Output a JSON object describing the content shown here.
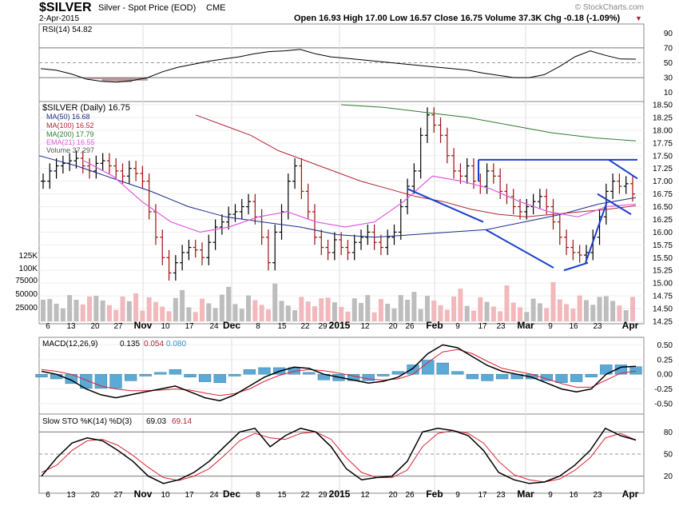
{
  "header": {
    "symbol": "$SILVER",
    "description": "Silver - Spot Price (EOD)",
    "exchange": "CME",
    "date": "2-Apr-2015",
    "copyright": "© StockCharts.com",
    "ohlc_text": "Open 16.93  High 17.00  Low 16.57  Close 16.75  Volume 37.3K  Chg -0.18 (-1.09%)",
    "chg_marker": "▼"
  },
  "colors": {
    "ma50": "#1c2a87",
    "ma100": "#b22234",
    "ma200": "#2e7d2e",
    "ema21": "#e05ae0",
    "trend": "#1a3fcf",
    "up_vol": "#bdbdbd",
    "down_vol": "#f2b8bc",
    "macd_hist": "#5aa9d6",
    "down_bar": "#a01010"
  },
  "chart_data": [
    {
      "type": "line",
      "panel": "rsi",
      "title": "RSI(14) 54.82",
      "yticks": [
        10,
        30,
        50,
        70,
        90
      ],
      "ylim": [
        0,
        100
      ],
      "overbought": 70,
      "oversold": 30,
      "values": [
        42,
        40,
        35,
        28,
        25,
        24,
        26,
        30,
        38,
        44,
        48,
        52,
        55,
        58,
        62,
        65,
        66,
        68,
        62,
        58,
        56,
        54,
        52,
        50,
        48,
        46,
        44,
        42,
        40,
        36,
        33,
        30,
        30,
        34,
        45,
        58,
        66,
        60,
        55,
        54.82
      ]
    },
    {
      "type": "ohlc",
      "panel": "price",
      "title": "$SILVER (Daily) 16.75",
      "legend": [
        "MA(50) 16.68",
        "MA(100) 16.52",
        "MA(200) 17.79",
        "EMA(21) 16.55",
        "Volume 37,297"
      ],
      "ylim": [
        14.25,
        18.5
      ],
      "yticks": [
        14.25,
        14.5,
        14.75,
        15.0,
        15.25,
        15.5,
        15.75,
        16.0,
        16.25,
        16.5,
        16.75,
        17.0,
        17.25,
        17.5,
        17.75,
        18.0,
        18.25,
        18.5
      ],
      "ytick_labels": [
        "14.25",
        "14.50",
        "14.75",
        "15.00",
        "15.25",
        "15.50",
        "15.75",
        "16.00",
        "16.25",
        "16.50",
        "16.75",
        "17.00",
        "17.25",
        "17.50",
        "17.75",
        "18.00",
        "18.25",
        "18.50"
      ],
      "volume_ticks": [
        "25000",
        "50000",
        "75000",
        "100K",
        "125K"
      ],
      "close": [
        17.0,
        17.2,
        17.3,
        17.35,
        17.4,
        17.45,
        17.3,
        17.2,
        17.35,
        17.4,
        17.3,
        17.2,
        17.1,
        17.25,
        17.15,
        17.0,
        16.4,
        15.9,
        15.5,
        15.2,
        15.4,
        15.6,
        15.7,
        15.65,
        15.5,
        15.8,
        16.1,
        16.2,
        16.35,
        16.4,
        16.5,
        16.6,
        16.3,
        15.9,
        15.4,
        16.0,
        16.4,
        17.0,
        17.3,
        16.8,
        16.4,
        15.9,
        15.7,
        15.6,
        15.85,
        15.7,
        15.6,
        15.8,
        15.9,
        16.0,
        15.8,
        15.7,
        15.9,
        16.0,
        16.5,
        16.9,
        17.2,
        17.9,
        18.3,
        18.1,
        17.9,
        17.5,
        17.2,
        17.1,
        17.3,
        17.0,
        16.9,
        17.2,
        17.1,
        16.8,
        16.7,
        16.5,
        16.4,
        16.5,
        16.6,
        16.7,
        16.5,
        16.2,
        15.9,
        15.7,
        15.6,
        15.55,
        15.6,
        15.9,
        16.3,
        16.8,
        17.0,
        16.9,
        16.95,
        16.75
      ],
      "ma50": [
        17.5,
        17.3,
        17.05,
        16.8,
        16.5,
        16.3,
        16.2,
        16.1,
        15.95,
        15.9,
        15.95,
        16.0,
        16.05,
        16.2,
        16.35,
        16.55,
        16.68
      ],
      "ma100": [
        18.3,
        18.1,
        17.9,
        17.6,
        17.4,
        17.2,
        17.0,
        16.85,
        16.7,
        16.6,
        16.45,
        16.35,
        16.3,
        16.35,
        16.4,
        16.45,
        16.52
      ],
      "ma200": [
        18.5,
        18.45,
        18.35,
        18.25,
        18.1,
        17.95,
        17.85,
        17.79
      ],
      "ema21": [
        17.4,
        17.1,
        16.6,
        16.2,
        16.0,
        16.1,
        16.3,
        16.4,
        16.2,
        16.1,
        16.2,
        16.6,
        17.1,
        17.0,
        16.85,
        16.6,
        16.4,
        16.3,
        16.5,
        16.55
      ]
    },
    {
      "type": "line",
      "panel": "macd",
      "title": "MACD(12,26,9)",
      "values_label": [
        "0.135",
        "0.054",
        "0.080"
      ],
      "ylim": [
        -0.65,
        0.6
      ],
      "yticks": [
        -0.5,
        -0.25,
        0.0,
        0.25,
        0.5
      ],
      "ytick_labels": [
        "-0.50",
        "-0.25",
        "0.00",
        "0.25",
        "0.50"
      ],
      "macd": [
        0.05,
        0.0,
        -0.1,
        -0.25,
        -0.35,
        -0.4,
        -0.35,
        -0.3,
        -0.25,
        -0.2,
        -0.3,
        -0.4,
        -0.45,
        -0.35,
        -0.2,
        -0.05,
        0.05,
        0.12,
        0.1,
        0.0,
        -0.05,
        -0.1,
        -0.15,
        -0.12,
        -0.05,
        0.1,
        0.35,
        0.5,
        0.45,
        0.3,
        0.15,
        0.05,
        0.0,
        -0.05,
        -0.15,
        -0.25,
        -0.3,
        -0.25,
        0.0,
        0.12,
        0.135
      ],
      "signal": [
        0.08,
        0.05,
        0.0,
        -0.1,
        -0.2,
        -0.25,
        -0.28,
        -0.28,
        -0.27,
        -0.25,
        -0.27,
        -0.32,
        -0.36,
        -0.33,
        -0.25,
        -0.12,
        -0.02,
        0.05,
        0.08,
        0.06,
        0.02,
        -0.03,
        -0.08,
        -0.1,
        -0.08,
        0.0,
        0.2,
        0.38,
        0.42,
        0.35,
        0.22,
        0.1,
        0.05,
        0.0,
        -0.08,
        -0.16,
        -0.22,
        -0.22,
        -0.1,
        0.02,
        0.054
      ]
    },
    {
      "type": "line",
      "panel": "sto",
      "title": "Slow STO %K(14) %D(3)",
      "values_label": [
        "69.03",
        "69.14"
      ],
      "ylim": [
        0,
        100
      ],
      "yticks": [
        20,
        50,
        80
      ],
      "k": [
        20,
        45,
        65,
        72,
        68,
        55,
        40,
        20,
        10,
        15,
        25,
        40,
        60,
        80,
        85,
        60,
        75,
        85,
        80,
        60,
        30,
        15,
        18,
        20,
        40,
        80,
        85,
        82,
        75,
        55,
        25,
        15,
        10,
        12,
        20,
        35,
        55,
        85,
        75,
        69.03
      ],
      "d": [
        25,
        35,
        55,
        68,
        70,
        62,
        48,
        32,
        18,
        14,
        20,
        30,
        48,
        68,
        78,
        72,
        70,
        78,
        80,
        70,
        45,
        25,
        18,
        18,
        28,
        60,
        78,
        82,
        78,
        65,
        40,
        22,
        15,
        12,
        16,
        28,
        45,
        72,
        78,
        69.14
      ]
    }
  ],
  "x_axis_labels": [
    "6",
    "13",
    "20",
    "27",
    "Nov",
    "10",
    "17",
    "24",
    "Dec",
    "8",
    "15",
    "22",
    "29",
    "2015",
    "12",
    "20",
    "26",
    "Feb",
    "9",
    "17",
    "23",
    "Mar",
    "9",
    "16",
    "23",
    "Apr"
  ],
  "x_axis_bold": [
    "Nov",
    "Dec",
    "2015",
    "Feb",
    "Mar",
    "Apr"
  ]
}
